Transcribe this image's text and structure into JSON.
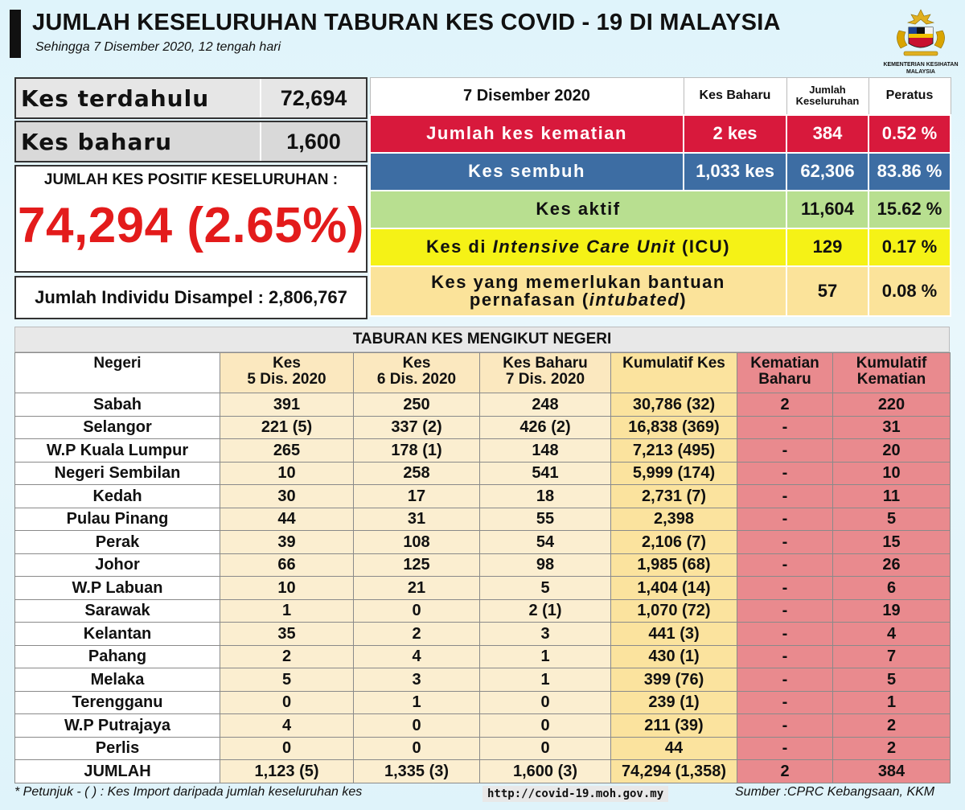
{
  "header": {
    "title": "JUMLAH KESELURUHAN TABURAN KES COVID - 19 DI MALAYSIA",
    "subtitle": "Sehingga 7 Disember 2020, 12 tengah hari",
    "logo_text_1": "KEMENTERIAN KESIHATAN",
    "logo_text_2": "MALAYSIA"
  },
  "summary": {
    "previous_label": "Kes terdahulu",
    "previous_value": "72,694",
    "new_label": "Kes baharu",
    "new_value": "1,600",
    "positive_label": "JUMLAH KES POSITIF KESELURUHAN :",
    "positive_value": "74,294 (2.65%)",
    "sampled": "Jumlah Individu Disampel : 2,806,767"
  },
  "status_table": {
    "date": "7 Disember 2020",
    "col_new": "Kes Baharu",
    "col_total_1": "Jumlah",
    "col_total_2": "Keseluruhan",
    "col_pct": "Peratus",
    "death": {
      "label": "Jumlah kes kematian",
      "new": "2 kes",
      "total": "384",
      "pct": "0.52 %"
    },
    "recovered": {
      "label": "Kes sembuh",
      "new": "1,033 kes",
      "total": "62,306",
      "pct": "83.86 %"
    },
    "active": {
      "label": "Kes aktif",
      "total": "11,604",
      "pct": "15.62 %"
    },
    "icu": {
      "label_pre": "Kes di ",
      "label_it": "Intensive Care Unit",
      "label_post": " (ICU)",
      "total": "129",
      "pct": "0.17 %"
    },
    "intubated": {
      "label_1": "Kes yang memerlukan bantuan",
      "label_2_pre": "pernafasan (",
      "label_2_it": "intubated",
      "label_2_post": ")",
      "total": "57",
      "pct": "0.08 %"
    }
  },
  "states": {
    "title": "TABURAN KES MENGIKUT NEGERI",
    "headers": {
      "state": "Negeri",
      "d5_1": "Kes",
      "d5_2": "5 Dis. 2020",
      "d6_1": "Kes",
      "d6_2": "6 Dis. 2020",
      "d7_1": "Kes Baharu",
      "d7_2": "7 Dis. 2020",
      "cum": "Kumulatif Kes",
      "nd_1": "Kematian",
      "nd_2": "Baharu",
      "cd_1": "Kumulatif",
      "cd_2": "Kematian"
    },
    "rows": [
      [
        "Sabah",
        "391",
        "250",
        "248",
        "30,786 (32)",
        "2",
        "220"
      ],
      [
        "Selangor",
        "221 (5)",
        "337 (2)",
        "426 (2)",
        "16,838 (369)",
        "-",
        "31"
      ],
      [
        "W.P Kuala Lumpur",
        "265",
        "178 (1)",
        "148",
        "7,213 (495)",
        "-",
        "20"
      ],
      [
        "Negeri Sembilan",
        "10",
        "258",
        "541",
        "5,999 (174)",
        "-",
        "10"
      ],
      [
        "Kedah",
        "30",
        "17",
        "18",
        "2,731 (7)",
        "-",
        "11"
      ],
      [
        "Pulau Pinang",
        "44",
        "31",
        "55",
        "2,398",
        "-",
        "5"
      ],
      [
        "Perak",
        "39",
        "108",
        "54",
        "2,106 (7)",
        "-",
        "15"
      ],
      [
        "Johor",
        "66",
        "125",
        "98",
        "1,985 (68)",
        "-",
        "26"
      ],
      [
        "W.P Labuan",
        "10",
        "21",
        "5",
        "1,404 (14)",
        "-",
        "6"
      ],
      [
        "Sarawak",
        "1",
        "0",
        "2 (1)",
        "1,070 (72)",
        "-",
        "19"
      ],
      [
        "Kelantan",
        "35",
        "2",
        "3",
        "441 (3)",
        "-",
        "4"
      ],
      [
        "Pahang",
        "2",
        "4",
        "1",
        "430 (1)",
        "-",
        "7"
      ],
      [
        "Melaka",
        "5",
        "3",
        "1",
        "399 (76)",
        "-",
        "5"
      ],
      [
        "Terengganu",
        "0",
        "1",
        "0",
        "239 (1)",
        "-",
        "1"
      ],
      [
        "W.P Putrajaya",
        "4",
        "0",
        "0",
        "211 (39)",
        "-",
        "2"
      ],
      [
        "Perlis",
        "0",
        "0",
        "0",
        "44",
        "-",
        "2"
      ],
      [
        "JUMLAH",
        "1,123 (5)",
        "1,335 (3)",
        "1,600 (3)",
        "74,294 (1,358)",
        "2",
        "384"
      ]
    ]
  },
  "footer": {
    "note": "* Petunjuk  - (  ) : Kes Import daripada jumlah keseluruhan kes",
    "url": "http://covid-19.moh.gov.my",
    "source": "Sumber :CPRC Kebangsaan,  KKM"
  },
  "colors": {
    "death": "#d8193c",
    "recovered": "#3d6da3",
    "active": "#b8df90",
    "icu": "#f5f216",
    "intubated": "#fbe39a",
    "positive_value": "#e31b1b",
    "death_columns": "#e98a8e"
  }
}
